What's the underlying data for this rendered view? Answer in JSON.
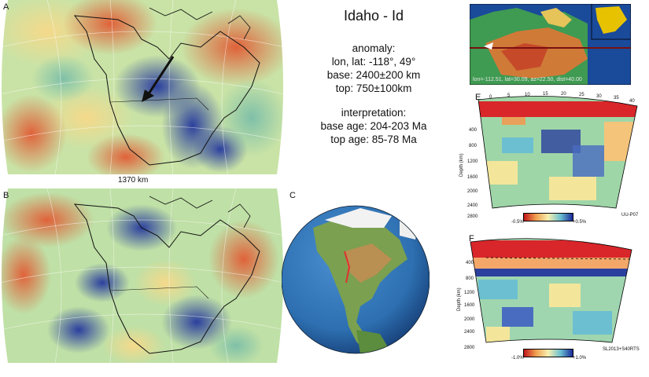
{
  "title": "Idaho - Id",
  "anomaly": {
    "heading": "anomaly:",
    "lonlat": "lon, lat: -118°, 49°",
    "base": "base: 2400±200 km",
    "top": "top: 750±100km"
  },
  "interpretation": {
    "heading": "interpretation:",
    "base_age": "base age: 204-203 Ma",
    "top_age": "top age: 85-78 Ma"
  },
  "panels": {
    "a": {
      "letter": "A",
      "scale": "1370 km"
    },
    "b": {
      "letter": "B"
    },
    "c": {
      "letter": "C"
    },
    "d": {
      "caption": "lon=-112.51, lat=30.09, az=22.50, dist=40.00"
    },
    "e": {
      "letter": "E",
      "top_ticks": [
        "0",
        "5",
        "10",
        "15",
        "20",
        "25",
        "30",
        "35",
        "40"
      ],
      "depth_ticks": [
        "400",
        "800",
        "1200",
        "1600",
        "2000",
        "2400",
        "2800"
      ],
      "depth_label": "Depth (km)",
      "scale_min": "-0.5%",
      "scale_max": "+0.5%",
      "model": "UU-P07"
    },
    "f": {
      "letter": "F",
      "depth_ticks": [
        "400",
        "800",
        "1200",
        "1600",
        "2000",
        "2400",
        "2800"
      ],
      "depth_label": "Depth (km)",
      "scale_min": "-1.0%",
      "scale_max": "+1.0%",
      "model": "SL2013+S40RTS"
    }
  },
  "colors": {
    "blue": "#2b3f9e",
    "red": "#d8262a",
    "green": "#a9d48f",
    "yellow": "#f3e69b",
    "ocean": "#2d6fb0"
  }
}
